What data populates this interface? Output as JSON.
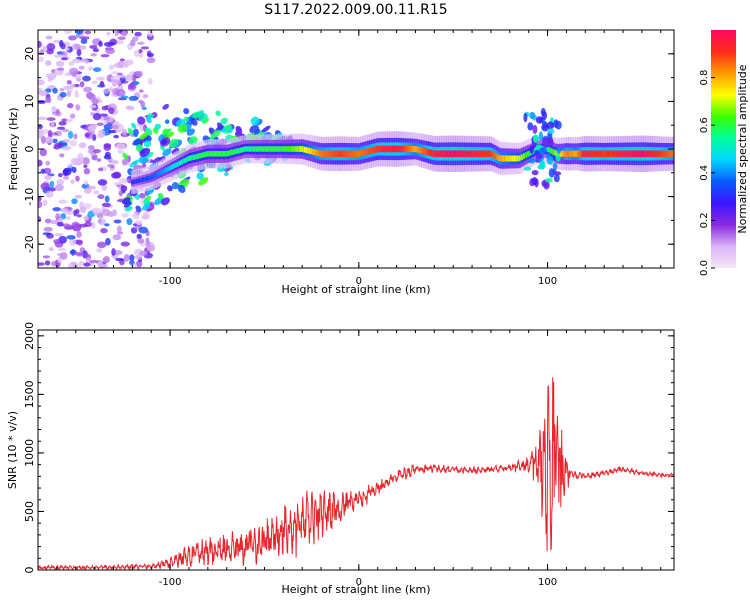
{
  "title": "S117.2022.009.00.11.R15",
  "colors": {
    "snr_line": "#e8262b",
    "colormap": [
      "#f4e6fb",
      "#d9b3f5",
      "#8a2be2",
      "#3c16ff",
      "#0a5bff",
      "#00d7ff",
      "#00ff9a",
      "#3cff00",
      "#ffff00",
      "#ff9a00",
      "#ff2a1a",
      "#ff0a60"
    ]
  },
  "chart_data": [
    {
      "type": "heatmap",
      "xlabel": "Height of straight line (km)",
      "ylabel": "Frequency (Hz)",
      "xlim": [
        -170,
        167
      ],
      "ylim": [
        -25,
        25
      ],
      "xticks": [
        -100,
        0,
        100
      ],
      "xtick_labels": [
        "-100",
        "0",
        "100"
      ],
      "yticks": [
        -20,
        -10,
        0,
        10,
        20
      ],
      "ytick_labels": [
        "-20",
        "-10",
        "0",
        "10",
        "20"
      ],
      "grid": false,
      "colorbar": {
        "label": "Normalized spectral amplitude",
        "range": [
          0,
          1
        ],
        "ticks": [
          0.0,
          0.2,
          0.4,
          0.6,
          0.8
        ],
        "tick_labels": [
          "0.0",
          "0.2",
          "0.4",
          "0.6",
          "0.8"
        ]
      },
      "ridge_x": [
        -120,
        -110,
        -100,
        -90,
        -80,
        -70,
        -60,
        -50,
        -40,
        -30,
        -20,
        -10,
        0,
        10,
        20,
        30,
        40,
        50,
        60,
        70,
        75,
        80,
        85,
        90,
        95,
        100,
        105,
        110,
        115,
        120,
        130,
        140,
        150,
        160,
        167
      ],
      "ridge_y": [
        -7,
        -6,
        -4,
        -2,
        -1,
        -1,
        0,
        0,
        0,
        0,
        -1,
        -1,
        -1,
        0,
        0,
        0,
        -1,
        -1,
        -1,
        -1,
        -2,
        -2,
        -2,
        -1,
        0,
        0,
        -1,
        -1,
        -1,
        -1,
        -1,
        -1,
        -1,
        -1,
        -1
      ],
      "ridge_amp": [
        0.3,
        0.35,
        0.45,
        0.55,
        0.6,
        0.6,
        0.55,
        0.6,
        0.6,
        0.7,
        0.85,
        0.9,
        0.85,
        0.9,
        0.95,
        0.8,
        0.95,
        1.0,
        0.95,
        0.9,
        0.8,
        0.75,
        0.7,
        0.6,
        0.5,
        0.55,
        0.7,
        0.85,
        0.8,
        0.95,
        0.9,
        0.95,
        1.0,
        0.9,
        0.85
      ]
    },
    {
      "type": "line",
      "xlabel": "Height of straight line (km)",
      "ylabel": "SNR (10 * v/v)",
      "xlim": [
        -170,
        167
      ],
      "ylim": [
        0,
        2050
      ],
      "xticks": [
        -100,
        0,
        100
      ],
      "xtick_labels": [
        "-100",
        "0",
        "100"
      ],
      "yticks": [
        0,
        500,
        1000,
        1500,
        2000
      ],
      "ytick_labels": [
        "0",
        "500",
        "1000",
        "1500",
        "2000"
      ],
      "grid": false,
      "series": [
        {
          "x": [
            -170,
            -140,
            -110,
            -100,
            -90,
            -80,
            -70,
            -60,
            -50,
            -40,
            -30,
            -20,
            -10,
            0,
            10,
            20,
            30,
            40,
            50,
            60,
            70,
            80,
            90,
            95,
            100,
            104,
            108,
            112,
            120,
            130,
            140,
            150,
            160,
            167
          ],
          "y": [
            20,
            20,
            30,
            60,
            120,
            160,
            180,
            200,
            240,
            320,
            400,
            480,
            530,
            600,
            700,
            800,
            860,
            870,
            860,
            850,
            860,
            870,
            900,
            950,
            900,
            1100,
            800,
            820,
            800,
            830,
            860,
            830,
            810,
            810
          ],
          "amplitude": [
            15,
            15,
            20,
            40,
            90,
            110,
            120,
            140,
            160,
            200,
            230,
            180,
            120,
            80,
            60,
            60,
            40,
            30,
            30,
            25,
            25,
            30,
            60,
            200,
            700,
            900,
            300,
            40,
            25,
            25,
            20,
            20,
            15,
            15
          ]
        }
      ]
    }
  ]
}
